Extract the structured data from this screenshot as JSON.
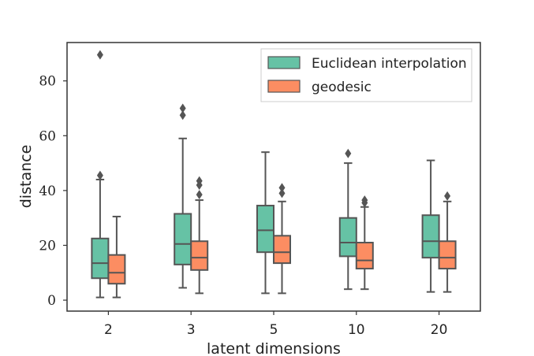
{
  "chart_data": {
    "type": "box",
    "title": "",
    "xlabel": "latent dimensions",
    "ylabel": "distance",
    "categories": [
      "2",
      "3",
      "5",
      "10",
      "20"
    ],
    "ylim": [
      -4,
      94
    ],
    "yticks": [
      0,
      20,
      40,
      60,
      80
    ],
    "grid": false,
    "legend_position": "top-right",
    "series": [
      {
        "name": "Euclidean interpolation",
        "color": "#66c2a5",
        "boxes": [
          {
            "whisker_low": 1,
            "q1": 8,
            "median": 13.5,
            "q3": 22.5,
            "whisker_high": 44,
            "outliers": [
              45.5,
              89.5
            ]
          },
          {
            "whisker_low": 4.5,
            "q1": 13,
            "median": 20.5,
            "q3": 31.5,
            "whisker_high": 59,
            "outliers": [
              67.5,
              70
            ]
          },
          {
            "whisker_low": 2.5,
            "q1": 17.5,
            "median": 25.5,
            "q3": 34.5,
            "whisker_high": 54,
            "outliers": []
          },
          {
            "whisker_low": 4,
            "q1": 16,
            "median": 21,
            "q3": 30,
            "whisker_high": 50,
            "outliers": [
              53.5
            ]
          },
          {
            "whisker_low": 3,
            "q1": 15.5,
            "median": 21.5,
            "q3": 31,
            "whisker_high": 51,
            "outliers": []
          }
        ]
      },
      {
        "name": "geodesic",
        "color": "#fc8d62",
        "boxes": [
          {
            "whisker_low": 1,
            "q1": 6,
            "median": 10,
            "q3": 16.5,
            "whisker_high": 30.5,
            "outliers": []
          },
          {
            "whisker_low": 2.5,
            "q1": 11,
            "median": 15.5,
            "q3": 21.5,
            "whisker_high": 36.5,
            "outliers": [
              38.5,
              42,
              43.5
            ]
          },
          {
            "whisker_low": 2.5,
            "q1": 13.5,
            "median": 17.5,
            "q3": 23.5,
            "whisker_high": 36,
            "outliers": [
              39,
              41
            ]
          },
          {
            "whisker_low": 4,
            "q1": 11.5,
            "median": 14.5,
            "q3": 21,
            "whisker_high": 34,
            "outliers": [
              35.5,
              36.5
            ]
          },
          {
            "whisker_low": 3,
            "q1": 11.5,
            "median": 15.5,
            "q3": 21.5,
            "whisker_high": 36,
            "outliers": [
              38
            ]
          }
        ]
      }
    ]
  }
}
